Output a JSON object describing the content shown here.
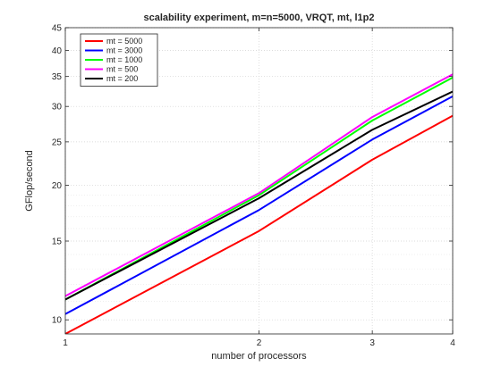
{
  "chart_data": {
    "type": "line",
    "title": "scalability experiment, m=n=5000, VRQT, mt, l1p2",
    "xlabel": "number of processors",
    "ylabel": "GFlop/second",
    "xscale": "log",
    "yscale": "log",
    "xlim": [
      1,
      4
    ],
    "ylim": [
      9.3,
      45
    ],
    "xticks": [
      1,
      2,
      3,
      4
    ],
    "yticks": [
      10,
      15,
      20,
      25,
      30,
      35,
      40,
      45
    ],
    "grid": "on (major and minor, dotted)",
    "legend_position": "top-left",
    "x": [
      1,
      2,
      3,
      4
    ],
    "series": [
      {
        "name": "mt = 5000",
        "color": "#ff0000",
        "values": [
          9.3,
          15.8,
          22.8,
          28.6
        ]
      },
      {
        "name": "mt = 3000",
        "color": "#0000ff",
        "values": [
          10.3,
          17.6,
          25.3,
          31.6
        ]
      },
      {
        "name": "mt = 1000",
        "color": "#00ff00",
        "values": [
          11.1,
          19.0,
          27.9,
          34.8
        ]
      },
      {
        "name": "mt = 500",
        "color": "#ff00ff",
        "values": [
          11.3,
          19.2,
          28.4,
          35.4
        ]
      },
      {
        "name": "mt = 200",
        "color": "#000000",
        "values": [
          11.1,
          18.7,
          26.6,
          32.4
        ]
      }
    ]
  }
}
